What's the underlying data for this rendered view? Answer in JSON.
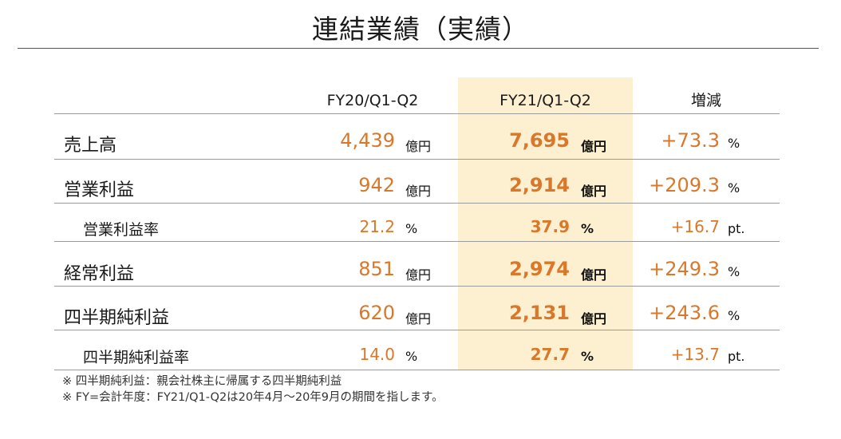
{
  "title": "連結業績（実績）",
  "columns": {
    "prev": "FY20/Q1-Q2",
    "curr": "FY21/Q1-Q2",
    "change": "増減"
  },
  "rows": [
    {
      "label": "売上高",
      "prev": "4,439",
      "prev_unit": "億円",
      "curr": "7,695",
      "curr_unit": "億円",
      "change": "+73.3",
      "change_unit": "%"
    },
    {
      "label": "営業利益",
      "prev": "942",
      "prev_unit": "億円",
      "curr": "2,914",
      "curr_unit": "億円",
      "change": "+209.3",
      "change_unit": "%"
    },
    {
      "label": "営業利益率",
      "prev": "21.2",
      "prev_unit": "%",
      "curr": "37.9",
      "curr_unit": "%",
      "change": "+16.7",
      "change_unit": "pt."
    },
    {
      "label": "経常利益",
      "prev": "851",
      "prev_unit": "億円",
      "curr": "2,974",
      "curr_unit": "億円",
      "change": "+249.3",
      "change_unit": "%"
    },
    {
      "label": "四半期純利益",
      "prev": "620",
      "prev_unit": "億円",
      "curr": "2,131",
      "curr_unit": "億円",
      "change": "+243.6",
      "change_unit": "%"
    },
    {
      "label": "四半期純利益率",
      "prev": "14.0",
      "prev_unit": "%",
      "curr": "27.7",
      "curr_unit": "%",
      "change": "+13.7",
      "change_unit": "pt."
    }
  ],
  "notes": [
    "※ 四半期純利益：親会社株主に帰属する四半期純利益",
    "※ FY=会計年度：FY21/Q1-Q2は20年4月～20年9月の期間を指します。"
  ],
  "colors": {
    "accent_orange": "#d9782a",
    "highlight_bg": "#fdf0d0"
  }
}
